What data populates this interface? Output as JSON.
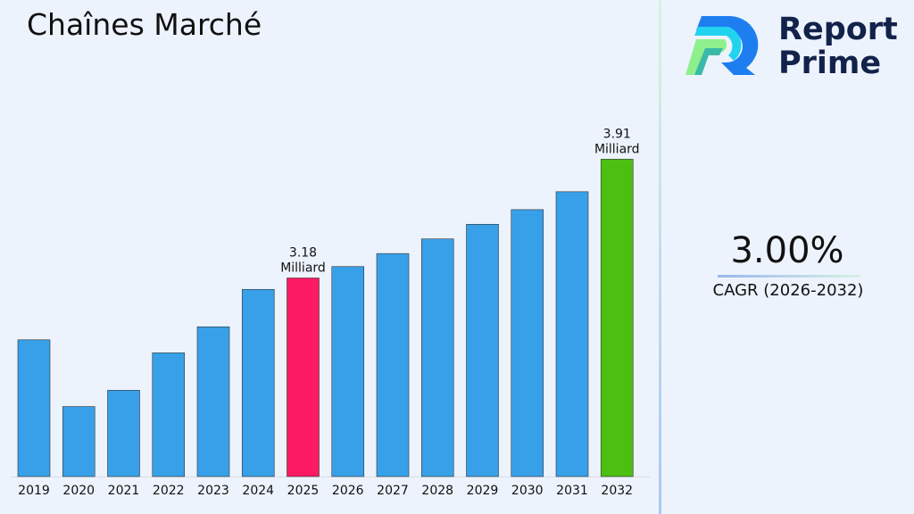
{
  "title": "Chaînes Marché",
  "logo": {
    "line1": "Report",
    "line2": "Prime"
  },
  "cagr": {
    "value": "3.00%",
    "label": "CAGR (2026-2032)"
  },
  "colors": {
    "default_bar": "#38a0e8",
    "highlight_2025": "#fc1a64",
    "highlight_2032": "#4cbf12",
    "background": "#edf3fd"
  },
  "chart_data": {
    "type": "bar",
    "title": "Chaînes Marché",
    "categories": [
      "2019",
      "2020",
      "2021",
      "2022",
      "2023",
      "2024",
      "2025",
      "2026",
      "2027",
      "2028",
      "2029",
      "2030",
      "2031",
      "2032"
    ],
    "values": [
      2.8,
      2.39,
      2.49,
      2.72,
      2.88,
      3.11,
      3.18,
      3.25,
      3.33,
      3.42,
      3.51,
      3.6,
      3.71,
      3.91
    ],
    "data_labels": [
      {
        "category": "2025",
        "value": "3.18",
        "unit": "Milliard"
      },
      {
        "category": "2032",
        "value": "3.91",
        "unit": "Milliard"
      }
    ],
    "highlight": {
      "2025": "#fc1a64",
      "2032": "#4cbf12"
    },
    "ylim": [
      1.96,
      4.4
    ],
    "grid": false,
    "xlabel": "",
    "ylabel": ""
  }
}
